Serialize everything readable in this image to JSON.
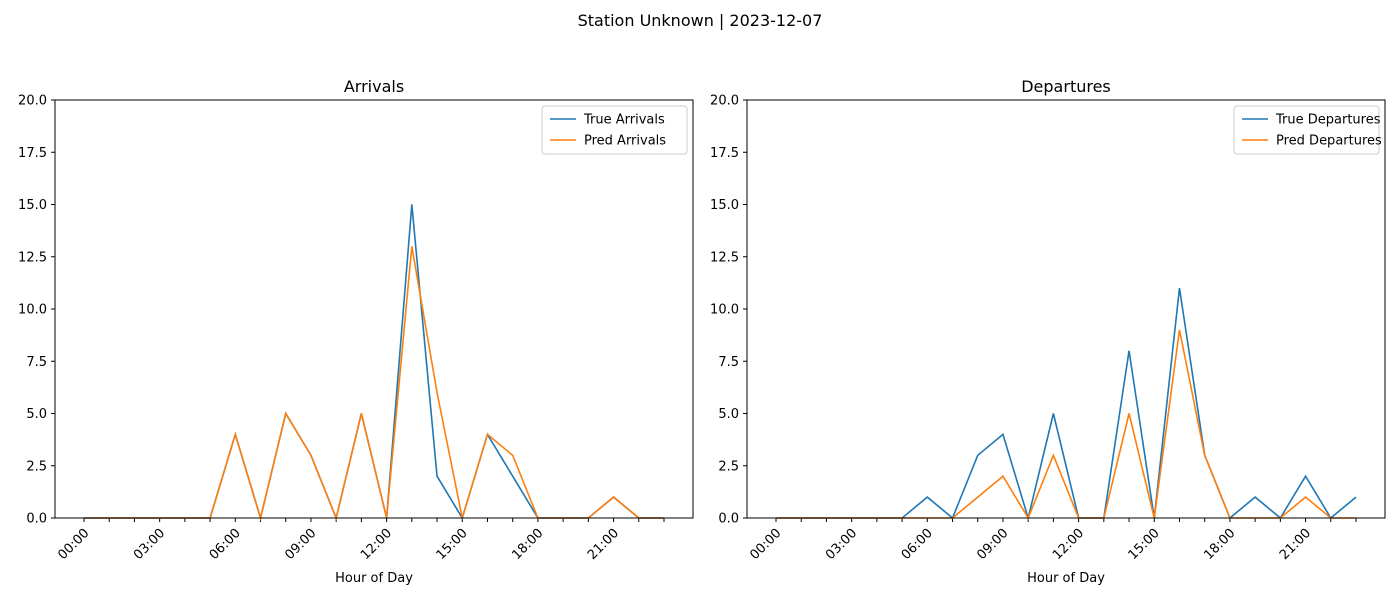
{
  "suptitle": "Station Unknown | 2023-12-07",
  "colors": {
    "true": "#1f77b4",
    "pred": "#ff7f0e"
  },
  "chart_data": [
    {
      "type": "line",
      "title": "Arrivals",
      "xlabel": "Hour of Day",
      "ylabel": "",
      "ylim": [
        0,
        20
      ],
      "yticks": [
        "0.0",
        "2.5",
        "5.0",
        "7.5",
        "10.0",
        "12.5",
        "15.0",
        "17.5",
        "20.0"
      ],
      "xticklabels": [
        "00:00",
        "03:00",
        "06:00",
        "09:00",
        "12:00",
        "15:00",
        "18:00",
        "21:00"
      ],
      "x": [
        0,
        1,
        2,
        3,
        4,
        5,
        6,
        7,
        8,
        9,
        10,
        11,
        12,
        13,
        14,
        15,
        16,
        17,
        18,
        19,
        20,
        21,
        22,
        23
      ],
      "legend_position": "top-right",
      "series": [
        {
          "name": "True Arrivals",
          "values": [
            0,
            0,
            0,
            0,
            0,
            0,
            4,
            0,
            5,
            3,
            0,
            5,
            0,
            15,
            2,
            0,
            4,
            2,
            0,
            0,
            0,
            1,
            0,
            0
          ]
        },
        {
          "name": "Pred Arrivals",
          "values": [
            0,
            0,
            0,
            0,
            0,
            0,
            4,
            0,
            5,
            3,
            0,
            5,
            0,
            13,
            6,
            0,
            4,
            3,
            0,
            0,
            0,
            1,
            0,
            0
          ]
        }
      ]
    },
    {
      "type": "line",
      "title": "Departures",
      "xlabel": "Hour of Day",
      "ylabel": "",
      "ylim": [
        0,
        20
      ],
      "yticks": [
        "0.0",
        "2.5",
        "5.0",
        "7.5",
        "10.0",
        "12.5",
        "15.0",
        "17.5",
        "20.0"
      ],
      "xticklabels": [
        "00:00",
        "03:00",
        "06:00",
        "09:00",
        "12:00",
        "15:00",
        "18:00",
        "21:00"
      ],
      "x": [
        0,
        1,
        2,
        3,
        4,
        5,
        6,
        7,
        8,
        9,
        10,
        11,
        12,
        13,
        14,
        15,
        16,
        17,
        18,
        19,
        20,
        21,
        22,
        23
      ],
      "legend_position": "top-right",
      "series": [
        {
          "name": "True Departures",
          "values": [
            0,
            0,
            0,
            0,
            0,
            0,
            1,
            0,
            3,
            4,
            0,
            5,
            0,
            0,
            8,
            0,
            11,
            3,
            0,
            1,
            0,
            2,
            0,
            1
          ]
        },
        {
          "name": "Pred Departures",
          "values": [
            0,
            0,
            0,
            0,
            0,
            0,
            0,
            0,
            1,
            2,
            0,
            3,
            0,
            0,
            5,
            0,
            9,
            3,
            0,
            0,
            0,
            1,
            0,
            0
          ]
        }
      ]
    }
  ]
}
